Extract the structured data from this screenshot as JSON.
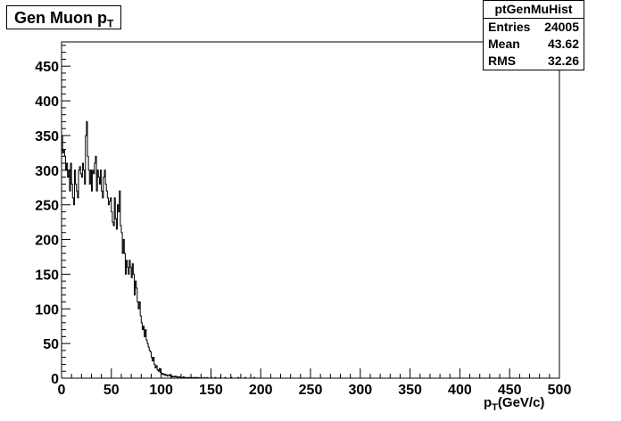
{
  "title": {
    "main": "Gen Muon p",
    "sub": "T"
  },
  "stats": {
    "name": "ptGenMuHist",
    "rows": [
      {
        "label": "Entries",
        "value": "24005"
      },
      {
        "label": "Mean",
        "value": "43.62"
      },
      {
        "label": "RMS",
        "value": "32.26"
      }
    ]
  },
  "xaxis_label": {
    "pre": "p",
    "sub": "T",
    "post": "(GeV/c)"
  },
  "chart_data": {
    "type": "bar",
    "style": "step-histogram",
    "xlim": [
      0,
      500
    ],
    "ylim": [
      0,
      485
    ],
    "xticks": [
      0,
      50,
      100,
      150,
      200,
      250,
      300,
      350,
      400,
      450,
      500
    ],
    "yticks": [
      0,
      50,
      100,
      150,
      200,
      250,
      300,
      350,
      400,
      450
    ],
    "bin_width": 1,
    "values": [
      350,
      325,
      330,
      320,
      300,
      310,
      290,
      300,
      270,
      310,
      280,
      260,
      250,
      300,
      280,
      270,
      260,
      300,
      305,
      295,
      290,
      310,
      300,
      280,
      350,
      370,
      320,
      300,
      280,
      300,
      270,
      300,
      295,
      310,
      320,
      270,
      300,
      290,
      280,
      300,
      270,
      260,
      290,
      300,
      280,
      270,
      260,
      250,
      255,
      260,
      240,
      225,
      220,
      260,
      230,
      215,
      250,
      240,
      270,
      220,
      210,
      180,
      200,
      180,
      150,
      170,
      160,
      150,
      170,
      160,
      145,
      165,
      150,
      120,
      140,
      130,
      110,
      100,
      110,
      90,
      80,
      70,
      75,
      60,
      70,
      55,
      50,
      45,
      40,
      38,
      30,
      25,
      30,
      20,
      15,
      18,
      12,
      10,
      14,
      8,
      6,
      7,
      5,
      6,
      4,
      5,
      3,
      4,
      5,
      3,
      2,
      3,
      2,
      2,
      3,
      2,
      1,
      2,
      2,
      1,
      1,
      1,
      2,
      1,
      1,
      1,
      0,
      1,
      1,
      1,
      1,
      0,
      1,
      0,
      1,
      1,
      0,
      1,
      0,
      0,
      1,
      0,
      0,
      1,
      0,
      0,
      1,
      0,
      0,
      0,
      1,
      0,
      0,
      0,
      1,
      0,
      0,
      0,
      0,
      1,
      0,
      0,
      0,
      0,
      1,
      0,
      0,
      0,
      0,
      0,
      1,
      0,
      0,
      0,
      0,
      0,
      0,
      1,
      0,
      0,
      0,
      0,
      0,
      0,
      1,
      0,
      0,
      0,
      0,
      0,
      0,
      0,
      0,
      1,
      0,
      0,
      0,
      0,
      0,
      0
    ]
  }
}
